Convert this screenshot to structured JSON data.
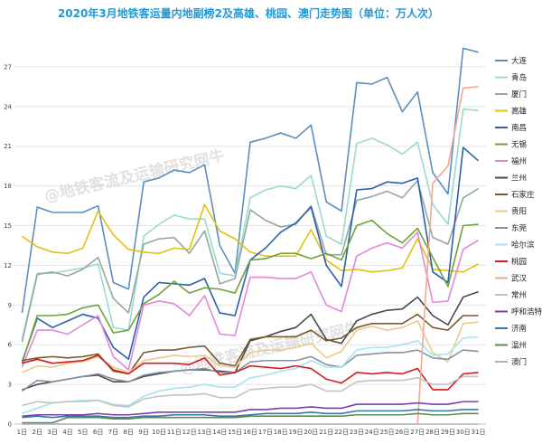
{
  "chart_data": {
    "type": "line",
    "title": "2020年3月地铁客运量内地副榜2及高雄、桃园、澳门走势图（单位：万人次）",
    "watermark": "@地铁客流及运输研究网牛",
    "xlabel": "",
    "ylabel": "",
    "categories": [
      "1日",
      "2日",
      "3日",
      "4日",
      "5日",
      "6日",
      "7日",
      "8日",
      "9日",
      "10日",
      "11日",
      "12日",
      "13日",
      "14日",
      "15日",
      "16日",
      "17日",
      "18日",
      "19日",
      "20日",
      "21日",
      "22日",
      "23日",
      "24日",
      "25日",
      "26日",
      "27日",
      "28日",
      "29日",
      "30日",
      "31日"
    ],
    "ylim": [
      0,
      30
    ],
    "yticks": [
      0,
      3,
      6,
      9,
      12,
      15,
      18,
      21,
      24,
      27
    ],
    "grid": true,
    "legend": "right",
    "series": [
      {
        "name": "大连",
        "color": "#5b8fbf",
        "values": [
          8.4,
          16.4,
          16,
          16,
          16,
          16.5,
          10.7,
          10.2,
          18.3,
          18.6,
          19.2,
          19,
          19.6,
          13.5,
          11.4,
          21.3,
          21.6,
          22,
          21.6,
          22.6,
          16.8,
          16.1,
          25.8,
          25.7,
          26.2,
          23.6,
          25.1,
          19,
          17.4,
          28.4,
          28.1
        ]
      },
      {
        "name": "青岛",
        "color": "#9cd9d1",
        "values": [
          6.4,
          11.4,
          11.4,
          11.6,
          11.8,
          12.1,
          7.3,
          7.1,
          14.2,
          15.1,
          15.8,
          15.5,
          15.5,
          11.4,
          11.2,
          17.1,
          17.7,
          18,
          17.8,
          18.8,
          14.2,
          13.6,
          21.2,
          21.6,
          21.1,
          20.4,
          21.3,
          16.6,
          15.1,
          23.8,
          23.7
        ]
      },
      {
        "name": "厦门",
        "color": "#93a8a0",
        "values": [
          6.2,
          11.3,
          11.5,
          11.2,
          11.7,
          12.6,
          9.5,
          8.4,
          13.6,
          14,
          14.1,
          12.9,
          14.6,
          10.6,
          11,
          16.2,
          15.4,
          14.9,
          15.1,
          16.5,
          12.8,
          12.8,
          16.9,
          17.2,
          17.6,
          17.1,
          18.4,
          14.1,
          13.6,
          17.1,
          17.8
        ]
      },
      {
        "name": "高雄",
        "color": "#e5c00e",
        "values": [
          14.2,
          13.4,
          13,
          12.9,
          13.3,
          16.1,
          14.3,
          13.2,
          13,
          12.9,
          13.3,
          13.2,
          16.6,
          14.6,
          14,
          13,
          12.7,
          12.7,
          12.7,
          14.7,
          12.4,
          11.6,
          11.7,
          11.5,
          11.6,
          11.8,
          14,
          11.7,
          11.6,
          11.5,
          12.1
        ]
      },
      {
        "name": "南昌",
        "color": "#2f5fa9",
        "values": [
          4.7,
          8,
          7.3,
          7.8,
          8.3,
          8,
          5.8,
          4.9,
          9.6,
          10.7,
          10.6,
          10.5,
          11,
          8.4,
          8.2,
          12.4,
          13.3,
          14.5,
          15.2,
          16.4,
          12,
          10.4,
          17.7,
          17.8,
          18.3,
          18.2,
          18.6,
          11.5,
          10.7,
          20.9,
          19.9
        ]
      },
      {
        "name": "无锡",
        "color": "#6fa13a",
        "values": [
          4.6,
          8.2,
          8.2,
          8.3,
          8.8,
          9,
          6.9,
          7.1,
          9.1,
          9.8,
          10.8,
          9.9,
          10.3,
          10.2,
          9.9,
          12.4,
          12.5,
          12.9,
          12.9,
          12.5,
          12.9,
          12.4,
          15,
          15.4,
          14.4,
          13.7,
          14.8,
          12.6,
          10.4,
          15,
          15.1
        ]
      },
      {
        "name": "福州",
        "color": "#df89d9",
        "values": [
          4.3,
          7.1,
          7.1,
          6.8,
          7.5,
          8.2,
          5.1,
          4.1,
          9,
          9.3,
          9.1,
          8.2,
          9.7,
          6.8,
          6.7,
          11.1,
          11.1,
          11,
          11,
          11.5,
          9,
          8.5,
          12.7,
          13.3,
          13.7,
          13.3,
          14.5,
          9.2,
          9.3,
          13.2,
          13.9
        ]
      },
      {
        "name": "兰州",
        "color": "#4a4a4a",
        "values": [
          2.6,
          3,
          3.2,
          3.4,
          3.6,
          3.7,
          3.2,
          3.2,
          3.6,
          3.8,
          4,
          4.1,
          4.1,
          4,
          3.9,
          6.3,
          6.6,
          7,
          7.3,
          8.3,
          6.4,
          6.1,
          7.8,
          8.3,
          8.6,
          8.7,
          9.6,
          8.2,
          7.5,
          9.6,
          10
        ]
      },
      {
        "name": "石家庄",
        "color": "#7a5a2c",
        "values": [
          4.8,
          5,
          5.1,
          5,
          5.1,
          5.3,
          4,
          3.8,
          5.4,
          5.6,
          5.6,
          5.8,
          5.9,
          4.6,
          4.4,
          6.4,
          6.6,
          6.6,
          6.6,
          7.1,
          6.3,
          6.5,
          7.3,
          7.6,
          7.6,
          7.6,
          8.3,
          7.3,
          7.1,
          8.2,
          8.2
        ]
      },
      {
        "name": "贵阳",
        "color": "#efc88c",
        "values": [
          3.9,
          4.4,
          4.3,
          4.6,
          4.7,
          5.1,
          4.3,
          3.9,
          4.8,
          5,
          5.2,
          5.1,
          5.2,
          4.4,
          4.3,
          5.4,
          5.6,
          5.6,
          5.8,
          6.1,
          5,
          5.5,
          7.1,
          7.4,
          7.1,
          7.3,
          7.8,
          5.4,
          4.7,
          7.6,
          7.7
        ]
      },
      {
        "name": "东莞",
        "color": "#8193a6",
        "values": [
          2.5,
          3.3,
          3.2,
          3.4,
          3.6,
          3.8,
          3.4,
          3.2,
          3.7,
          3.9,
          4,
          4.1,
          4.2,
          3.9,
          3.9,
          4.7,
          4.8,
          4.8,
          4.8,
          5.1,
          4.5,
          4.3,
          5.2,
          5.3,
          5.4,
          5.4,
          5.6,
          5,
          4.9,
          5.6,
          5.5
        ]
      },
      {
        "name": "哈尔滨",
        "color": "#a8e3f0",
        "values": [
          0.8,
          1.2,
          1.6,
          1.7,
          1.8,
          1.8,
          1.5,
          1.4,
          2.1,
          2.5,
          2.7,
          2.8,
          3,
          2.8,
          2.8,
          3.5,
          3.7,
          4,
          4.2,
          4.8,
          4.3,
          4.3,
          5.6,
          5.8,
          5.8,
          6,
          6.3,
          5.2,
          5.3,
          6.5,
          6.6
        ]
      },
      {
        "name": "桃园",
        "color": "#cc1f1f",
        "values": [
          4.6,
          4.9,
          4.6,
          4.7,
          4.8,
          5.2,
          4.1,
          3.8,
          4.6,
          4.6,
          4.6,
          4.5,
          5,
          3.7,
          3.9,
          4.4,
          4.3,
          4.2,
          4.4,
          4.2,
          3.4,
          3.1,
          3.9,
          3.8,
          3.9,
          3.8,
          4.2,
          2.6,
          2.6,
          3.8,
          3.9
        ]
      },
      {
        "name": "武汉",
        "color": "#f2a890",
        "values": [
          0,
          0,
          0,
          0,
          0,
          0,
          0,
          0,
          0,
          0,
          0,
          0,
          0,
          0,
          0,
          0,
          0,
          0,
          0,
          0,
          0,
          0,
          0,
          0,
          0,
          0,
          0,
          18.2,
          19.5,
          25.4,
          25.5
        ]
      },
      {
        "name": "常州",
        "color": "#c2c2c2",
        "values": [
          1.4,
          1.7,
          1.6,
          1.7,
          1.7,
          1.8,
          1.4,
          1.3,
          1.9,
          2.1,
          2.2,
          2.2,
          2.3,
          2,
          2,
          2.6,
          2.7,
          2.8,
          2.8,
          3,
          2.5,
          2.5,
          3.2,
          3.3,
          3.3,
          3.3,
          3.5,
          3,
          3,
          3.6,
          3.6
        ]
      },
      {
        "name": "呼和浩特",
        "color": "#7a3fa8",
        "values": [
          0.6,
          0.7,
          0.7,
          0.7,
          0.7,
          0.8,
          0.7,
          0.7,
          0.8,
          0.9,
          0.9,
          0.9,
          0.9,
          0.9,
          0.9,
          1.1,
          1.1,
          1.2,
          1.2,
          1.3,
          1.2,
          1.2,
          1.5,
          1.5,
          1.5,
          1.5,
          1.6,
          1.5,
          1.5,
          1.7,
          1.7
        ]
      },
      {
        "name": "济南",
        "color": "#2f7aa8",
        "values": [
          0.5,
          0.6,
          0.5,
          0.6,
          0.6,
          0.6,
          0.5,
          0.5,
          0.6,
          0.6,
          0.7,
          0.7,
          0.7,
          0.6,
          0.6,
          0.7,
          0.8,
          0.8,
          0.8,
          0.9,
          0.8,
          0.8,
          1,
          1,
          1,
          1,
          1.1,
          1,
          1,
          1.1,
          1.1
        ]
      },
      {
        "name": "温州",
        "color": "#5e8a4f",
        "values": [
          0.1,
          0.1,
          0.1,
          0.5,
          0.5,
          0.5,
          0.4,
          0.4,
          0.5,
          0.5,
          0.5,
          0.5,
          0.5,
          0.5,
          0.5,
          0.6,
          0.6,
          0.6,
          0.6,
          0.6,
          0.6,
          0.6,
          0.7,
          0.7,
          0.7,
          0.7,
          0.8,
          0.7,
          0.7,
          0.8,
          0.8
        ]
      },
      {
        "name": "澳门",
        "color": "#a8b4c4",
        "values": [
          0,
          0,
          0,
          0,
          0,
          0,
          0,
          0,
          0,
          0,
          0,
          0,
          0,
          0,
          0,
          0,
          0,
          0,
          0,
          0,
          0,
          0,
          0,
          0,
          0,
          0,
          0,
          0,
          0,
          0,
          0
        ]
      }
    ]
  }
}
